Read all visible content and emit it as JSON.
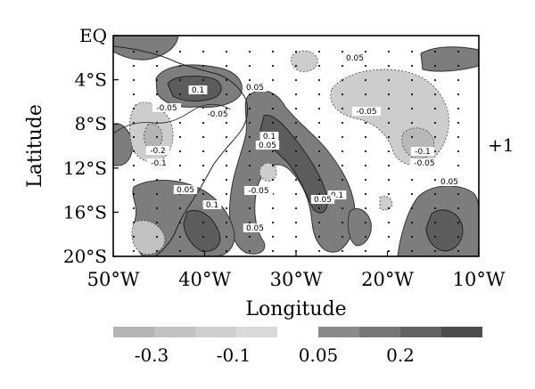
{
  "axes": {
    "xlabel": "Longitude",
    "ylabel": "Latitude",
    "x_ticks": [
      "50°W",
      "40°W",
      "30°W",
      "20°W",
      "10°W"
    ],
    "y_ticks": [
      "EQ",
      "4°S",
      "8°S",
      "12°S",
      "16°S",
      "20°S"
    ],
    "xlim_deg_east": [
      -50,
      -10
    ],
    "ylim_deg_north": [
      -20,
      0
    ]
  },
  "panel_tag": "+1",
  "contour_labels": [
    "0.05",
    "-0.05",
    "0.1",
    "0.05",
    "0.05",
    "-0.05",
    "-0.2",
    "-0.1",
    "0.1",
    "0.05",
    "-0.05",
    "0.05",
    "0.1",
    "-0.1",
    "-0.05",
    "0.05",
    "0.1",
    "0.05",
    "0.05",
    "-0.05"
  ],
  "colorbar": {
    "negative_levels": [
      "-0.3",
      "-0.1"
    ],
    "positive_levels": [
      "0.05",
      "0.2"
    ],
    "negative_colors": [
      "#b4b4b4",
      "#c2c2c2",
      "#cecece",
      "#dadada"
    ],
    "positive_colors": [
      "#8a8a8a",
      "#767676",
      "#626262",
      "#4c4c4c"
    ]
  },
  "colors": {
    "positive_fill": "#7d7d7d",
    "positive_dark": "#5c5c5c",
    "negative_fill": "#cdcdcd",
    "coast": "#222222",
    "frame": "#000000"
  }
}
